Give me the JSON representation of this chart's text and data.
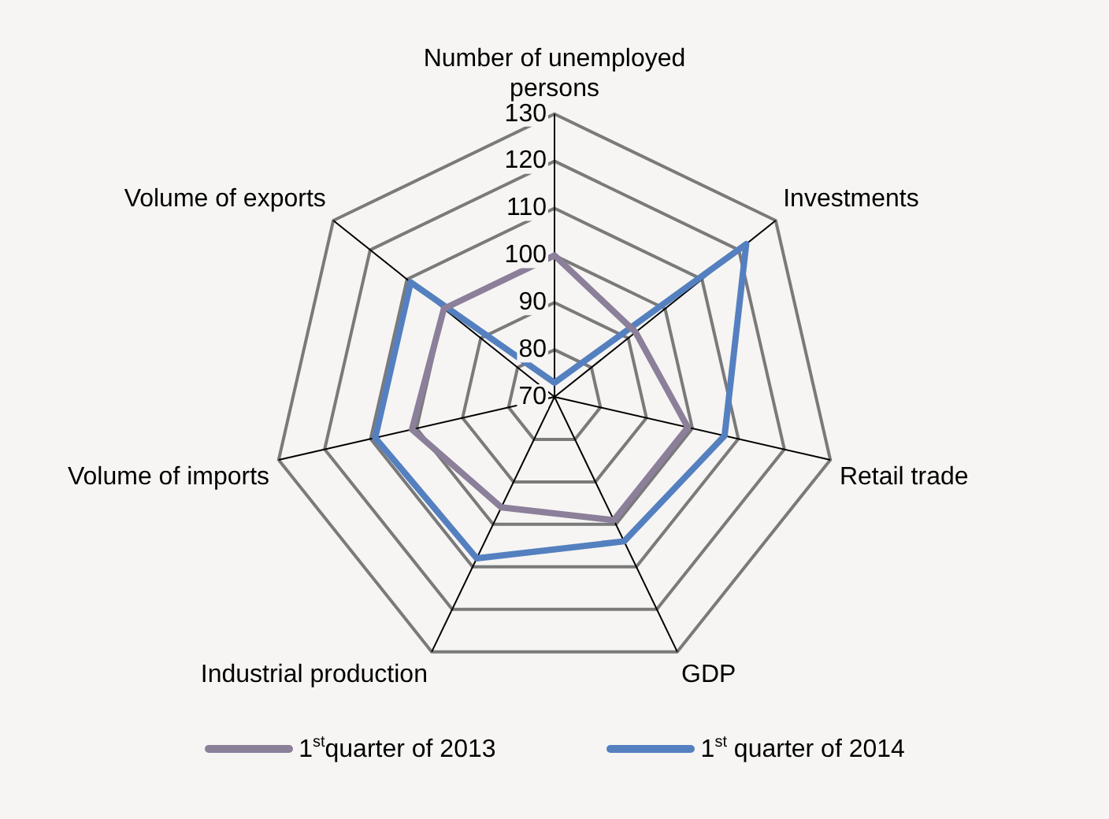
{
  "chart_data": {
    "type": "radar",
    "categories": [
      "Number of unemployed persons",
      "Investments",
      "Retail trade",
      "GDP",
      "Industrial production",
      "Volume of imports",
      "Volume of exports"
    ],
    "series": [
      {
        "name": "1$^{st}$quarter of 2013",
        "color": "#8b7f9a",
        "values": [
          100,
          92,
          99,
          99,
          96,
          101,
          100
        ]
      },
      {
        "name": "1$^{st}$ quarter of 2014",
        "color": "#5580c0",
        "values": [
          73,
          122,
          107,
          104,
          108,
          109,
          109
        ]
      }
    ],
    "ylim": [
      70,
      130
    ],
    "yticks": [
      70,
      80,
      90,
      100,
      110,
      120,
      130
    ],
    "grid": true,
    "legend": "bottom",
    "marker": "none",
    "line_style": "solid"
  }
}
